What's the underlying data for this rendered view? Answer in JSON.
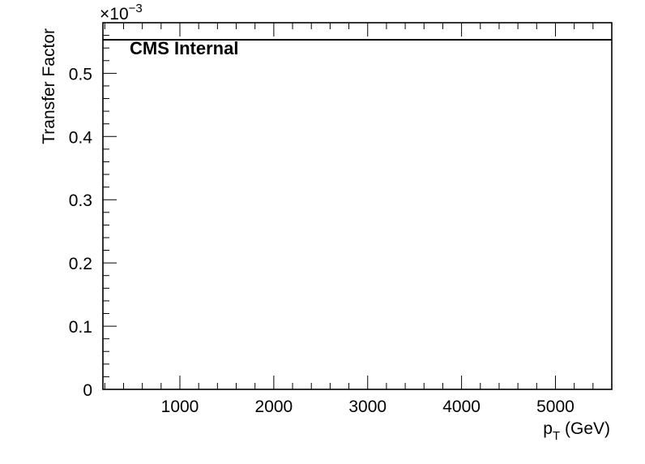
{
  "chart_data": {
    "type": "line",
    "title": "",
    "annotation": "CMS Internal",
    "xlabel_main": "p",
    "xlabel_sub": "T",
    "xlabel_rest": " (GeV)",
    "ylabel": "Transfer Factor",
    "y_multiplier_base": "×10",
    "y_multiplier_exp": "−3",
    "xlim": [
      180,
      5600
    ],
    "ylim": [
      0,
      0.58
    ],
    "x_ticks": [
      1000,
      2000,
      3000,
      4000,
      5000
    ],
    "x_tick_labels": [
      "1000",
      "2000",
      "3000",
      "4000",
      "5000"
    ],
    "y_ticks": [
      0,
      0.1,
      0.2,
      0.3,
      0.4,
      0.5
    ],
    "y_tick_labels": [
      "0",
      "0.1",
      "0.2",
      "0.3",
      "0.4",
      "0.5"
    ],
    "y_scale_note": "values ×10^-3",
    "series": [
      {
        "x": [
          180,
          5600
        ],
        "values": [
          0.553,
          0.553
        ]
      }
    ],
    "grid": false,
    "legend": "none",
    "colors": {
      "line": "#000000",
      "frame": "#000000",
      "background": "#ffffff"
    }
  }
}
